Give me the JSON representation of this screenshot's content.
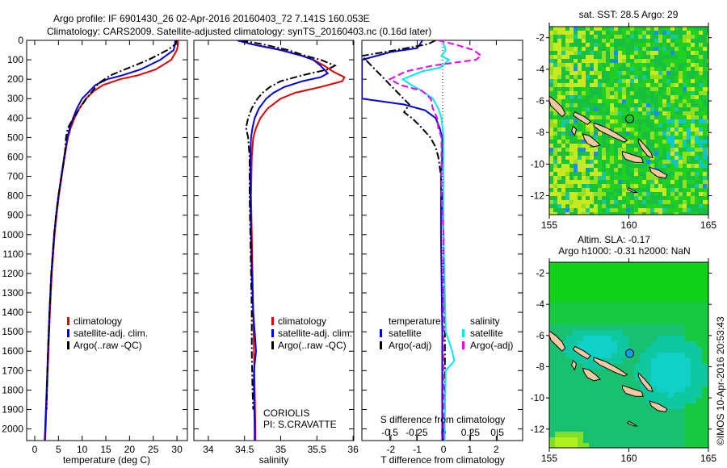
{
  "header": {
    "title_line1": "Argo profile: IF 6901430_26 02-Apr-2016 20160403_72 7.141S 160.053E",
    "title_line2": "Climatology: CARS2009. Satellite-adjusted climatology: synTS_20160403.nc (0.16d later)"
  },
  "colors": {
    "climatology": "#e00000",
    "satellite": "#0000e0",
    "argo": "#000000",
    "sal_satellite": "#00e8f0",
    "sal_argo": "#f000f0"
  },
  "chart_data": [
    {
      "type": "line",
      "id": "temperature",
      "xlabel": "temperature (deg C)",
      "ylabel": "",
      "xlim": [
        -1.7,
        32.2
      ],
      "ylim": [
        2060,
        0
      ],
      "xticks": [
        0,
        5,
        10,
        15,
        20,
        25,
        30
      ],
      "yticks": [
        0,
        100,
        200,
        300,
        400,
        500,
        600,
        700,
        800,
        900,
        1000,
        1100,
        1200,
        1300,
        1400,
        1500,
        1600,
        1700,
        1800,
        1900,
        2000
      ],
      "legend": [
        "climatology",
        "satellite-adj. clim.",
        "Argo(..raw -QC)"
      ],
      "legend_position": "lower-middle",
      "series": [
        {
          "name": "climatology",
          "style": "solid",
          "color_key": "climatology",
          "depth": [
            0,
            20,
            50,
            100,
            150,
            180,
            200,
            230,
            260,
            300,
            350,
            400,
            450,
            500,
            600,
            700,
            800,
            900,
            1000,
            1200,
            1400,
            1600,
            1800,
            2000,
            2060
          ],
          "values": [
            30.2,
            30.2,
            30.0,
            28.8,
            25.5,
            21.8,
            18.0,
            14.4,
            12.5,
            10.8,
            9.4,
            8.4,
            7.6,
            7.0,
            6.3,
            5.7,
            5.1,
            4.6,
            4.2,
            3.6,
            3.2,
            2.9,
            2.6,
            2.3,
            2.2
          ]
        },
        {
          "name": "satellite-adj. clim.",
          "style": "solid",
          "color_key": "satellite",
          "depth": [
            0,
            20,
            50,
            100,
            150,
            180,
            200,
            230,
            260,
            300,
            350,
            400,
            450,
            500,
            600,
            700,
            800,
            900,
            1000,
            1200,
            1400,
            1600,
            1800,
            2000,
            2060
          ],
          "values": [
            29.6,
            29.6,
            29.3,
            26.5,
            22.3,
            18.5,
            15.3,
            12.8,
            11.6,
            10.0,
            8.9,
            8.1,
            7.4,
            6.9,
            6.2,
            5.6,
            5.0,
            4.5,
            4.1,
            3.5,
            3.1,
            2.8,
            2.5,
            2.2,
            2.1
          ]
        },
        {
          "name": "Argo(..raw -QC)",
          "style": "dashdot",
          "color_key": "argo",
          "depth": [
            0,
            20,
            50,
            100,
            140,
            180,
            220,
            260,
            300,
            350,
            400,
            450,
            500,
            600,
            700,
            800,
            900,
            1000,
            1200,
            1400,
            1600,
            1800,
            1900
          ],
          "values": [
            29.9,
            29.7,
            28.0,
            24.0,
            20.0,
            16.0,
            13.5,
            12.2,
            10.9,
            9.5,
            8.2,
            7.0,
            6.6,
            6.3,
            5.6,
            5.0,
            4.5,
            4.1,
            3.5,
            3.1,
            2.8,
            2.6,
            2.5
          ]
        }
      ]
    },
    {
      "type": "line",
      "id": "salinity",
      "xlabel": "salinity",
      "xlim": [
        33.8,
        36.01
      ],
      "ylim": [
        2060,
        0
      ],
      "xticks": [
        34,
        34.5,
        35,
        35.5,
        36
      ],
      "legend": [
        "climatology",
        "satellite-adj. clim.",
        "Argo(..raw -QC)"
      ],
      "legend_position": "lower-middle",
      "annotations": [
        "CORIOLIS",
        "PI: S.CRAVATTE"
      ],
      "series": [
        {
          "name": "climatology",
          "style": "solid",
          "color_key": "climatology",
          "depth": [
            0,
            20,
            50,
            80,
            100,
            130,
            160,
            190,
            210,
            240,
            270,
            300,
            350,
            400,
            450,
            500,
            600,
            800,
            1000,
            1200,
            1400,
            1600,
            1800,
            2000,
            2060
          ],
          "values": [
            34.4,
            34.6,
            35.0,
            35.3,
            35.45,
            35.6,
            35.72,
            35.88,
            35.85,
            35.55,
            35.2,
            35.0,
            34.82,
            34.72,
            34.66,
            34.62,
            34.6,
            34.59,
            34.6,
            34.61,
            34.62,
            34.63,
            34.64,
            34.65,
            34.65
          ]
        },
        {
          "name": "satellite-adj. clim.",
          "style": "solid",
          "color_key": "satellite",
          "depth": [
            0,
            20,
            50,
            80,
            100,
            130,
            150,
            170,
            190,
            210,
            240,
            270,
            300,
            350,
            400,
            450,
            500,
            600,
            800,
            1000,
            1200,
            1400,
            1500,
            1600,
            1700,
            1800,
            2000,
            2060
          ],
          "values": [
            34.4,
            34.6,
            35.0,
            35.3,
            35.45,
            35.55,
            35.6,
            35.65,
            35.55,
            35.3,
            35.05,
            34.9,
            34.8,
            34.7,
            34.64,
            34.61,
            34.59,
            34.58,
            34.58,
            34.59,
            34.6,
            34.62,
            34.64,
            34.66,
            34.63,
            34.63,
            34.64,
            34.64
          ]
        },
        {
          "name": "Argo(..raw -QC)",
          "style": "dashdot",
          "color_key": "argo",
          "depth": [
            0,
            20,
            50,
            80,
            100,
            130,
            150,
            180,
            210,
            240,
            270,
            300,
            350,
            400,
            450,
            500,
            600,
            800,
            1000,
            1200,
            1400,
            1600,
            1800,
            1900
          ],
          "values": [
            34.45,
            34.75,
            35.1,
            35.35,
            35.55,
            35.75,
            35.65,
            35.3,
            35.0,
            34.85,
            34.75,
            34.68,
            34.6,
            34.55,
            34.52,
            34.55,
            34.57,
            34.57,
            34.58,
            34.59,
            34.6,
            34.6,
            34.61,
            34.62
          ]
        }
      ]
    },
    {
      "type": "line",
      "id": "difference",
      "xlabel": "T difference from climatology",
      "x2label": "S difference from climatology",
      "xlim": [
        -3.1,
        3.0
      ],
      "ylim": [
        2060,
        0
      ],
      "xticks": [
        -2,
        -1,
        0,
        1,
        2
      ],
      "x2ticks": [
        -0.5,
        -0.25,
        0,
        0.25,
        0.5
      ],
      "legend_temperature_title": "temperature",
      "legend_salinity_title": "salinity",
      "legend_temperature": [
        "satellite",
        "Argo(-adj)"
      ],
      "legend_salinity": [
        "satellite",
        "Argo(-adj)"
      ],
      "legend_position": "lower-middle",
      "series": [
        {
          "name": "temperature satellite",
          "style": "solid",
          "color_key": "satellite",
          "axis": "T",
          "depth": [
            0,
            20,
            40,
            60,
            100,
            300,
            330,
            360,
            400,
            450,
            500,
            600,
            700,
            800,
            1000,
            1500,
            2000,
            2060
          ],
          "values": [
            -0.8,
            -0.9,
            -1.0,
            -2.0,
            -3.1,
            -3.1,
            -1.5,
            -0.7,
            -0.3,
            -0.15,
            -0.05,
            -0.05,
            -0.1,
            -0.1,
            -0.1,
            -0.05,
            -0.05,
            -0.05
          ]
        },
        {
          "name": "temperature Argo(-adj)",
          "style": "dashdot",
          "color_key": "argo",
          "axis": "T",
          "depth": [
            0,
            20,
            50,
            80,
            330,
            370,
            400,
            440,
            500,
            550,
            600,
            700,
            800,
            1000,
            1500,
            1900
          ],
          "values": [
            -0.3,
            -0.6,
            -1.8,
            -3.1,
            -1.3,
            -1.5,
            -1.2,
            -0.9,
            -0.5,
            -0.3,
            -0.2,
            -0.1,
            -0.05,
            0,
            0.05,
            0.05
          ]
        },
        {
          "name": "salinity satellite",
          "style": "solid",
          "color_key": "sal_satellite",
          "axis": "S",
          "depth": [
            0,
            20,
            50,
            80,
            100,
            140,
            160,
            200,
            230,
            260,
            300,
            350,
            400,
            500,
            600,
            800,
            1000,
            1500,
            1600,
            1650,
            1700,
            2000,
            2060
          ],
          "values": [
            0,
            0,
            0.02,
            -0.02,
            0.05,
            -0.03,
            -0.2,
            -0.38,
            -0.3,
            -0.2,
            -0.1,
            -0.05,
            -0.02,
            0,
            0,
            0,
            0,
            0.02,
            0.08,
            0.1,
            0.02,
            0.01,
            0.01
          ]
        },
        {
          "name": "salinity Argo(-adj)",
          "style": "dashed",
          "color_key": "sal_argo",
          "axis": "S",
          "depth": [
            0,
            20,
            50,
            80,
            100,
            130,
            160,
            200,
            230,
            260,
            300,
            350,
            400,
            450,
            500,
            600,
            800,
            1000,
            1500,
            1800,
            2000,
            2060
          ],
          "values": [
            -0.05,
            0.1,
            0.28,
            0.35,
            0.3,
            -0.1,
            -0.35,
            -0.5,
            -0.4,
            -0.2,
            -0.12,
            -0.1,
            -0.06,
            -0.05,
            -0.02,
            -0.02,
            -0.02,
            0,
            0,
            0,
            0,
            0
          ]
        }
      ]
    },
    {
      "type": "heatmap",
      "id": "sst-map",
      "title": "sat. SST: 28.5 Argo: 29",
      "xlim": [
        155,
        165
      ],
      "ylim": [
        -13.2,
        -1.3
      ],
      "xticks": [
        155,
        160,
        165
      ],
      "yticks": [
        -2,
        -4,
        -6,
        -8,
        -10,
        -12
      ],
      "marker": {
        "lon": 160.053,
        "lat": -7.141
      }
    },
    {
      "type": "heatmap",
      "id": "sla-map",
      "title_line1": "Altim. SLA: -0.17",
      "title_line2": "Argo h1000: -0.31 h2000: NaN",
      "xlim": [
        155,
        165
      ],
      "ylim": [
        -13.2,
        -1.3
      ],
      "xticks": [
        155,
        160,
        165
      ],
      "yticks": [
        -2,
        -4,
        -6,
        -8,
        -10,
        -12
      ],
      "marker": {
        "lon": 160.053,
        "lat": -7.141
      }
    }
  ],
  "footer": {
    "stamp": "©IMOS 10-Apr-2016 20:53:43"
  }
}
